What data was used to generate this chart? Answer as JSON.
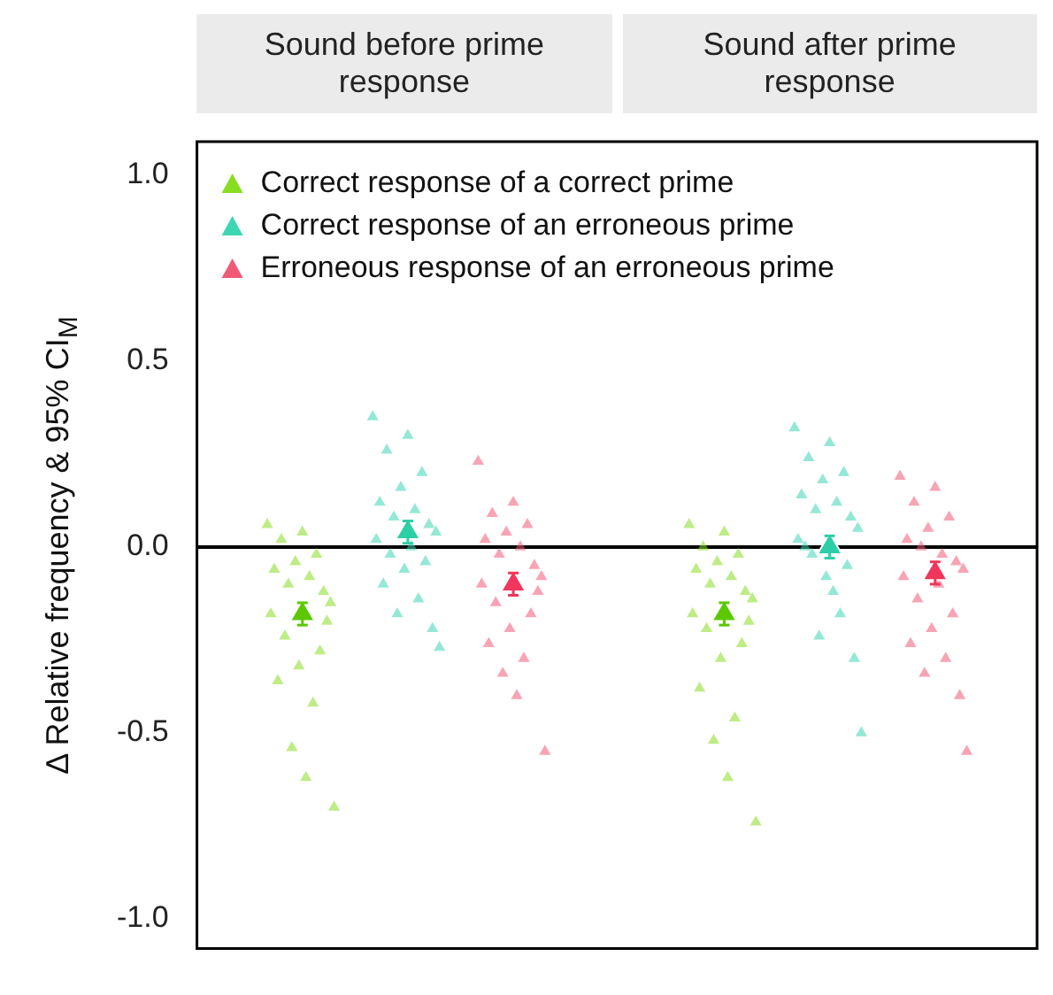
{
  "chart_data": {
    "type": "scatter",
    "ylabel": "Δ Relative frequency & 95% CI$_{M}$",
    "annotations": [
      "Sound before prime response",
      "Sound after prime response"
    ],
    "categories": [
      null,
      null,
      null,
      null,
      null,
      null,
      null,
      null,
      null,
      null,
      null,
      null,
      null,
      null,
      null,
      null,
      null,
      null,
      null,
      null,
      null,
      null,
      null,
      null,
      null,
      null,
      null,
      null,
      null,
      null,
      null,
      null,
      null,
      null,
      null,
      null,
      null,
      null,
      null,
      null,
      null,
      null,
      null,
      null,
      null,
      null,
      null,
      null,
      null,
      null,
      null,
      null,
      null,
      null,
      null,
      null,
      null,
      null,
      null,
      null,
      null,
      null,
      null,
      null,
      null,
      null,
      null,
      null,
      null,
      null,
      null,
      null,
      null,
      null,
      null,
      null,
      null,
      null,
      null,
      null,
      null,
      null,
      null,
      null,
      null,
      null,
      null,
      null,
      null,
      null,
      null,
      null,
      null,
      null,
      null,
      null,
      null,
      null,
      null,
      null,
      null,
      null,
      null,
      null,
      null,
      null,
      null,
      null,
      null,
      null,
      null,
      null,
      null,
      null,
      null,
      null,
      null,
      null,
      null,
      null,
      null,
      null,
      null,
      null,
      null,
      null,
      null,
      null,
      null,
      null,
      null,
      null,
      null,
      null,
      null,
      null,
      null,
      null,
      null,
      null,
      null,
      null,
      null,
      null,
      null,
      null,
      null,
      null,
      null,
      null,
      null,
      null,
      null,
      null,
      null,
      null,
      null,
      null,
      null,
      null,
      null,
      null,
      null,
      null,
      null,
      null,
      null,
      null,
      null,
      null,
      null,
      null,
      null,
      null,
      null,
      null,
      null,
      null,
      null,
      null,
      null,
      null,
      null,
      null,
      null,
      null,
      null,
      null,
      null,
      null,
      null,
      null,
      null,
      null,
      null,
      null,
      null,
      null,
      null,
      null,
      null,
      null,
      null,
      null,
      null,
      null,
      null,
      null,
      null,
      null,
      null,
      null,
      null,
      null,
      null,
      null,
      null,
      null,
      null,
      null,
      null,
      null,
      null,
      null,
      null,
      null,
      null,
      null,
      null,
      null,
      null,
      null,
      null,
      null,
      null,
      null,
      null,
      null,
      null,
      null
    ],
    "series": [
      {
        "name": "Correct response of a correct prime",
        "color": "#88dd22",
        "values": [
          null,
          null,
          null,
          null,
          null,
          null,
          null,
          null,
          null,
          null,
          null,
          null,
          null,
          null,
          null,
          null,
          null,
          null,
          null,
          null,
          0.06,
          -0.18,
          -0.06,
          -0.36,
          0.02,
          -0.24,
          -0.1,
          -0.54,
          -0.04,
          -0.32,
          0.04,
          -0.62,
          -0.08,
          -0.42,
          -0.02,
          -0.28,
          -0.12,
          -0.2,
          -0.15,
          -0.7,
          null,
          null,
          null,
          null,
          null,
          null,
          null,
          null,
          null,
          null,
          null,
          null,
          null,
          null,
          null,
          null,
          null,
          null,
          null,
          null,
          null,
          null,
          null,
          null,
          null,
          null,
          null,
          null,
          null,
          null,
          null,
          null,
          null,
          null,
          null,
          null,
          null,
          null,
          null,
          null,
          null,
          null,
          null,
          null,
          null,
          null,
          null,
          null,
          null,
          null,
          null,
          null,
          null,
          null,
          null,
          null,
          null,
          null,
          null,
          null,
          null,
          null,
          null,
          null,
          null,
          null,
          null,
          null,
          null,
          null,
          null,
          null,
          null,
          null,
          null,
          null,
          null,
          null,
          null,
          null,
          null,
          null,
          null,
          null,
          null,
          null,
          null,
          null,
          null,
          null,
          null,
          null,
          null,
          null,
          null,
          null,
          null,
          null,
          null,
          null,
          0.06,
          -0.18,
          -0.06,
          -0.38,
          0,
          -0.22,
          -0.1,
          -0.52,
          -0.04,
          -0.3,
          0.04,
          -0.62,
          -0.08,
          -0.46,
          -0.02,
          -0.26,
          -0.12,
          -0.2,
          -0.14,
          -0.74,
          null,
          null,
          null,
          null,
          null,
          null,
          null,
          null,
          null,
          null,
          null,
          null,
          null,
          null,
          null,
          null,
          null,
          null,
          null,
          null,
          null,
          null,
          null,
          null,
          null,
          null,
          null,
          null,
          null,
          null,
          null,
          null,
          null,
          null,
          null,
          null,
          null,
          null,
          null,
          null,
          null,
          null,
          null,
          null,
          null,
          null,
          null,
          null,
          null,
          null,
          null,
          null,
          null,
          null,
          null,
          null,
          null,
          null,
          null,
          null,
          null,
          null,
          null,
          null,
          null,
          null,
          null,
          null,
          null,
          null,
          null,
          null,
          null,
          null,
          null,
          null,
          null,
          null,
          null,
          null
        ]
      },
      {
        "name": "Correct response of an erroneous prime",
        "color": "#3ed6b4",
        "values": [
          null,
          null,
          null,
          null,
          null,
          null,
          null,
          null,
          null,
          null,
          null,
          null,
          null,
          null,
          null,
          null,
          null,
          null,
          null,
          null,
          null,
          null,
          null,
          null,
          null,
          null,
          null,
          null,
          null,
          null,
          null,
          null,
          null,
          null,
          null,
          null,
          null,
          null,
          null,
          null,
          null,
          null,
          null,
          null,
          null,
          null,
          null,
          null,
          null,
          null,
          0.35,
          0.02,
          0.12,
          -0.1,
          0.26,
          -0.02,
          0.08,
          -0.18,
          0.16,
          -0.06,
          0.3,
          0,
          0.1,
          -0.14,
          0.2,
          -0.04,
          0.06,
          -0.22,
          0.04,
          -0.27,
          null,
          null,
          null,
          null,
          null,
          null,
          null,
          null,
          null,
          null,
          null,
          null,
          null,
          null,
          null,
          null,
          null,
          null,
          null,
          null,
          null,
          null,
          null,
          null,
          null,
          null,
          null,
          null,
          null,
          null,
          null,
          null,
          null,
          null,
          null,
          null,
          null,
          null,
          null,
          null,
          null,
          null,
          null,
          null,
          null,
          null,
          null,
          null,
          null,
          null,
          null,
          null,
          null,
          null,
          null,
          null,
          null,
          null,
          null,
          null,
          null,
          null,
          null,
          null,
          null,
          null,
          null,
          null,
          null,
          null,
          null,
          null,
          null,
          null,
          null,
          null,
          null,
          null,
          null,
          null,
          null,
          null,
          null,
          null,
          null,
          null,
          null,
          null,
          null,
          null,
          null,
          null,
          null,
          null,
          null,
          null,
          null,
          null,
          null,
          null,
          0.32,
          0.02,
          0.14,
          0,
          0.24,
          -0.02,
          0.1,
          -0.24,
          0.18,
          -0.08,
          0.28,
          -0.12,
          0.12,
          -0.18,
          0.2,
          -0.05,
          0.08,
          -0.3,
          0.05,
          -0.5,
          null,
          null,
          null,
          null,
          null,
          null,
          null,
          null,
          null,
          null,
          null,
          null,
          null,
          null,
          null,
          null,
          null,
          null,
          null,
          null,
          null,
          null,
          null,
          null,
          null,
          null,
          null,
          null,
          null,
          null,
          null,
          null,
          null,
          null,
          null,
          null,
          null,
          null,
          null,
          null,
          null,
          null,
          null,
          null,
          null,
          null,
          null,
          null,
          null,
          null
        ]
      },
      {
        "name": "Erroneous response of an erroneous prime",
        "color": "#f05a78",
        "values": [
          null,
          null,
          null,
          null,
          null,
          null,
          null,
          null,
          null,
          null,
          null,
          null,
          null,
          null,
          null,
          null,
          null,
          null,
          null,
          null,
          null,
          null,
          null,
          null,
          null,
          null,
          null,
          null,
          null,
          null,
          null,
          null,
          null,
          null,
          null,
          null,
          null,
          null,
          null,
          null,
          null,
          null,
          null,
          null,
          null,
          null,
          null,
          null,
          null,
          null,
          null,
          null,
          null,
          null,
          null,
          null,
          null,
          null,
          null,
          null,
          null,
          null,
          null,
          null,
          null,
          null,
          null,
          null,
          null,
          null,
          null,
          null,
          null,
          null,
          null,
          null,
          null,
          null,
          null,
          null,
          0.23,
          -0.1,
          0.02,
          -0.26,
          0.09,
          -0.15,
          -0.02,
          -0.34,
          0.04,
          -0.22,
          0.12,
          -0.4,
          0,
          -0.3,
          0.06,
          -0.18,
          -0.05,
          -0.12,
          -0.08,
          -0.55,
          null,
          null,
          null,
          null,
          null,
          null,
          null,
          null,
          null,
          null,
          null,
          null,
          null,
          null,
          null,
          null,
          null,
          null,
          null,
          null,
          null,
          null,
          null,
          null,
          null,
          null,
          null,
          null,
          null,
          null,
          null,
          null,
          null,
          null,
          null,
          null,
          null,
          null,
          null,
          null,
          null,
          null,
          null,
          null,
          null,
          null,
          null,
          null,
          null,
          null,
          null,
          null,
          null,
          null,
          null,
          null,
          null,
          null,
          null,
          null,
          null,
          null,
          null,
          null,
          null,
          null,
          null,
          null,
          null,
          null,
          null,
          null,
          null,
          null,
          null,
          null,
          null,
          null,
          null,
          null,
          null,
          null,
          null,
          null,
          null,
          null,
          null,
          null,
          null,
          null,
          null,
          null,
          null,
          null,
          null,
          null,
          null,
          null,
          null,
          null,
          0.19,
          -0.08,
          0.02,
          -0.26,
          0.12,
          -0.14,
          0,
          -0.34,
          0.05,
          -0.22,
          0.16,
          -0.1,
          -0.02,
          -0.3,
          0.08,
          -0.18,
          -0.04,
          -0.4,
          -0.06,
          -0.55,
          null,
          null,
          null,
          null,
          null,
          null,
          null,
          null,
          null,
          null,
          null,
          null,
          null,
          null,
          null,
          null,
          null,
          null,
          null,
          null
        ]
      },
      {
        "colors": [
          null,
          null,
          null,
          null,
          null,
          null,
          null,
          null,
          null,
          null,
          null,
          null,
          null,
          null,
          null,
          null,
          null,
          null,
          null,
          null,
          null,
          null,
          null,
          null,
          null,
          null,
          null,
          null,
          null,
          null,
          "#5cc800",
          null,
          null,
          null,
          null,
          null,
          null,
          null,
          null,
          null,
          null,
          null,
          null,
          null,
          null,
          null,
          null,
          null,
          null,
          null,
          null,
          null,
          null,
          null,
          null,
          null,
          null,
          null,
          null,
          null,
          "#2ccfa6",
          null,
          null,
          null,
          null,
          null,
          null,
          null,
          null,
          null,
          null,
          null,
          null,
          null,
          null,
          null,
          null,
          null,
          null,
          null,
          null,
          null,
          null,
          null,
          null,
          null,
          null,
          null,
          null,
          null,
          "#f0365c",
          null,
          null,
          null,
          null,
          null,
          null,
          null,
          null,
          null,
          null,
          null,
          null,
          null,
          null,
          null,
          null,
          null,
          null,
          null,
          null,
          null,
          null,
          null,
          null,
          null,
          null,
          null,
          null,
          null,
          null,
          null,
          null,
          null,
          null,
          null,
          null,
          null,
          null,
          null,
          null,
          null,
          null,
          null,
          null,
          null,
          null,
          null,
          null,
          null,
          null,
          null,
          null,
          null,
          null,
          null,
          null,
          null,
          null,
          null,
          "#5cc800",
          null,
          null,
          null,
          null,
          null,
          null,
          null,
          null,
          null,
          null,
          null,
          null,
          null,
          null,
          null,
          null,
          null,
          null,
          null,
          null,
          null,
          null,
          null,
          null,
          null,
          null,
          null,
          null,
          null,
          "#2ccfa6",
          null,
          null,
          null,
          null,
          null,
          null,
          null,
          null,
          null,
          null,
          null,
          null,
          null,
          null,
          null,
          null,
          null,
          null,
          null,
          null,
          null,
          null,
          null,
          null,
          null,
          null,
          null,
          null,
          null,
          "#f0365c",
          null,
          null,
          null,
          null,
          null,
          null,
          null,
          null,
          null,
          null,
          null,
          null,
          null,
          null,
          null,
          null,
          null,
          null,
          null,
          null,
          null,
          null,
          null,
          null,
          null,
          null,
          null,
          null,
          null
        ],
        "values": [
          null,
          null,
          null,
          null,
          null,
          null,
          null,
          null,
          null,
          null,
          null,
          null,
          null,
          null,
          null,
          null,
          null,
          null,
          null,
          null,
          null,
          null,
          null,
          null,
          null,
          null,
          null,
          null,
          null,
          null,
          -0.18,
          null,
          null,
          null,
          null,
          null,
          null,
          null,
          null,
          null,
          null,
          null,
          null,
          null,
          null,
          null,
          null,
          null,
          null,
          null,
          null,
          null,
          null,
          null,
          null,
          null,
          null,
          null,
          null,
          null,
          0.04,
          null,
          null,
          null,
          null,
          null,
          null,
          null,
          null,
          null,
          null,
          null,
          null,
          null,
          null,
          null,
          null,
          null,
          null,
          null,
          null,
          null,
          null,
          null,
          null,
          null,
          null,
          null,
          null,
          null,
          -0.1,
          null,
          null,
          null,
          null,
          null,
          null,
          null,
          null,
          null,
          null,
          null,
          null,
          null,
          null,
          null,
          null,
          null,
          null,
          null,
          null,
          null,
          null,
          null,
          null,
          null,
          null,
          null,
          null,
          null,
          null,
          null,
          null,
          null,
          null,
          null,
          null,
          null,
          null,
          null,
          null,
          null,
          null,
          null,
          null,
          null,
          null,
          null,
          null,
          null,
          null,
          null,
          null,
          null,
          null,
          null,
          null,
          null,
          null,
          null,
          -0.18,
          null,
          null,
          null,
          null,
          null,
          null,
          null,
          null,
          null,
          null,
          null,
          null,
          null,
          null,
          null,
          null,
          null,
          null,
          null,
          null,
          null,
          null,
          null,
          null,
          null,
          null,
          null,
          null,
          null,
          0,
          null,
          null,
          null,
          null,
          null,
          null,
          null,
          null,
          null,
          null,
          null,
          null,
          null,
          null,
          null,
          null,
          null,
          null,
          null,
          null,
          null,
          null,
          null,
          null,
          null,
          null,
          null,
          null,
          null,
          -0.07,
          null,
          null,
          null,
          null,
          null,
          null,
          null,
          null,
          null,
          null,
          null,
          null,
          null,
          null,
          null,
          null,
          null,
          null,
          null,
          null,
          null,
          null,
          null,
          null,
          null,
          null,
          null,
          null,
          null
        ],
        "errors": [
          null,
          null,
          null,
          null,
          null,
          null,
          null,
          null,
          null,
          null,
          null,
          null,
          null,
          null,
          null,
          null,
          null,
          null,
          null,
          null,
          null,
          null,
          null,
          null,
          null,
          null,
          null,
          null,
          null,
          null,
          0.03,
          null,
          null,
          null,
          null,
          null,
          null,
          null,
          null,
          null,
          null,
          null,
          null,
          null,
          null,
          null,
          null,
          null,
          null,
          null,
          null,
          null,
          null,
          null,
          null,
          null,
          null,
          null,
          null,
          null,
          0.03,
          null,
          null,
          null,
          null,
          null,
          null,
          null,
          null,
          null,
          null,
          null,
          null,
          null,
          null,
          null,
          null,
          null,
          null,
          null,
          null,
          null,
          null,
          null,
          null,
          null,
          null,
          null,
          null,
          null,
          0.03,
          null,
          null,
          null,
          null,
          null,
          null,
          null,
          null,
          null,
          null,
          null,
          null,
          null,
          null,
          null,
          null,
          null,
          null,
          null,
          null,
          null,
          null,
          null,
          null,
          null,
          null,
          null,
          null,
          null,
          null,
          null,
          null,
          null,
          null,
          null,
          null,
          null,
          null,
          null,
          null,
          null,
          null,
          null,
          null,
          null,
          null,
          null,
          null,
          null,
          null,
          null,
          null,
          null,
          null,
          null,
          null,
          null,
          null,
          null,
          0.03,
          null,
          null,
          null,
          null,
          null,
          null,
          null,
          null,
          null,
          null,
          null,
          null,
          null,
          null,
          null,
          null,
          null,
          null,
          null,
          null,
          null,
          null,
          null,
          null,
          null,
          null,
          null,
          null,
          null,
          0.03,
          null,
          null,
          null,
          null,
          null,
          null,
          null,
          null,
          null,
          null,
          null,
          null,
          null,
          null,
          null,
          null,
          null,
          null,
          null,
          null,
          null,
          null,
          null,
          null,
          null,
          null,
          null,
          null,
          null,
          0.03,
          null,
          null,
          null,
          null,
          null,
          null,
          null,
          null,
          null,
          null,
          null,
          null,
          null,
          null,
          null,
          null,
          null,
          null,
          null,
          null,
          null,
          null,
          null,
          null,
          null,
          null,
          null,
          null,
          null
        ]
      }
    ],
    "ylim": [
      -1.08,
      1.09
    ],
    "yticks": [
      {
        "value": 1,
        "label": "1.0"
      },
      {
        "value": 0.5,
        "label": "0.5"
      },
      {
        "value": 0,
        "label": "0.0"
      },
      {
        "value": -0.5,
        "label": "-0.5"
      },
      {
        "value": -1,
        "label": "-1.0"
      }
    ],
    "ref_lines": [
      {
        "axis": "y",
        "value": 0,
        "color": "#000000"
      }
    ],
    "legend": "top left",
    "marker": "triangle",
    "tick_labels": "y"
  }
}
